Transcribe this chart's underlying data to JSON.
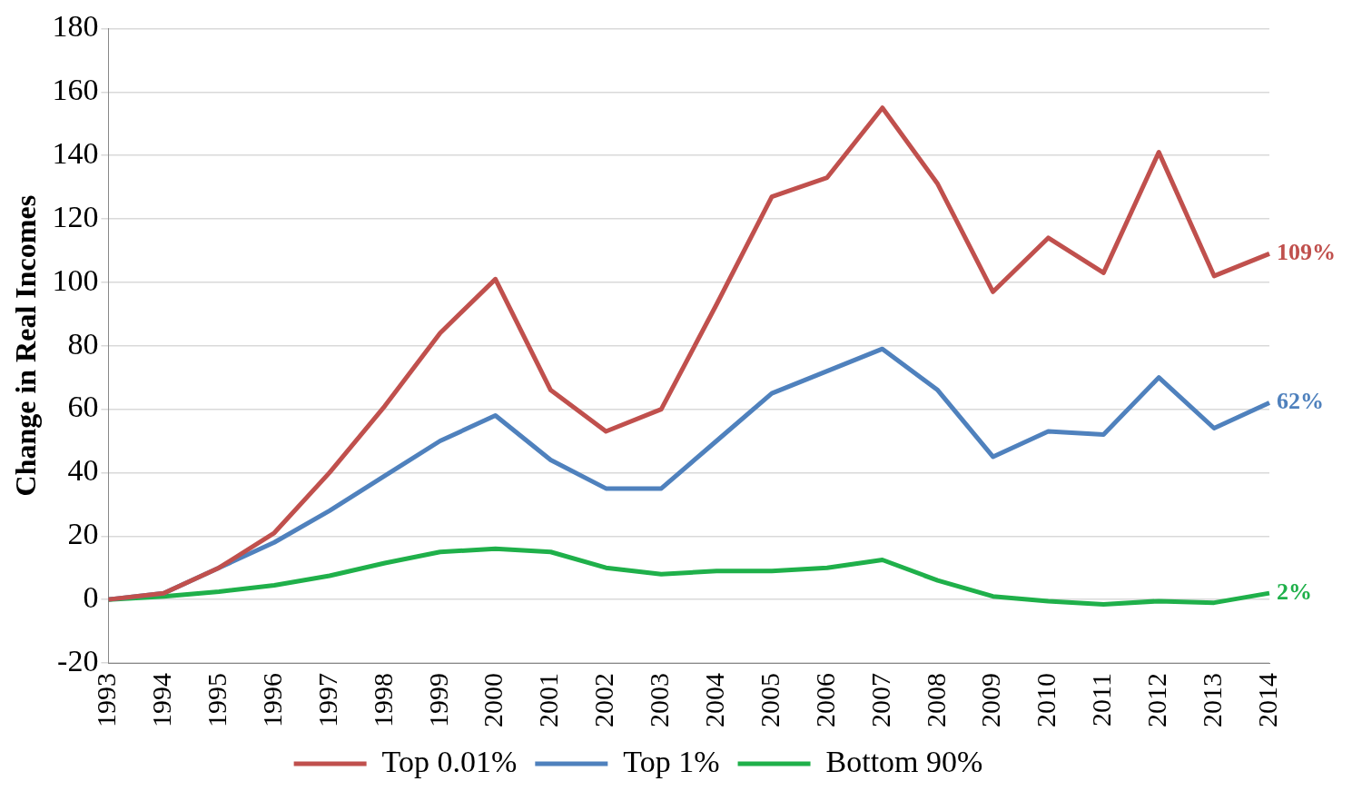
{
  "chart_data": {
    "type": "line",
    "ylabel": "Change in Real Incomes",
    "categories": [
      "1993",
      "1994",
      "1995",
      "1996",
      "1997",
      "1998",
      "1999",
      "2000",
      "2001",
      "2002",
      "2003",
      "2004",
      "2005",
      "2006",
      "2007",
      "2008",
      "2009",
      "2010",
      "2011",
      "2012",
      "2013",
      "2014"
    ],
    "series": [
      {
        "name": "Top 0.01%",
        "color": "#c0504d",
        "values": [
          0,
          2,
          10,
          21,
          40,
          61,
          84,
          101,
          66,
          53,
          60,
          93,
          127,
          133,
          155,
          131,
          97,
          114,
          103,
          141,
          102,
          109
        ],
        "value_labels": [
          null,
          null,
          null,
          null,
          null,
          null,
          null,
          null,
          null,
          null,
          null,
          null,
          null,
          null,
          null,
          null,
          null,
          null,
          null,
          null,
          null,
          "109%"
        ]
      },
      {
        "name": "Top 1%",
        "color": "#4f81bd",
        "values": [
          0,
          2,
          10,
          18,
          28,
          39,
          50,
          58,
          44,
          35,
          35,
          50,
          65,
          72,
          79,
          66,
          45,
          53,
          52,
          70,
          54,
          62
        ],
        "value_labels": [
          null,
          null,
          null,
          null,
          null,
          null,
          null,
          null,
          null,
          null,
          null,
          null,
          null,
          null,
          null,
          null,
          null,
          null,
          null,
          null,
          null,
          "62%"
        ]
      },
      {
        "name": "Bottom 90%",
        "color": "#1fb04a",
        "values": [
          0,
          1,
          2.5,
          4.5,
          7.5,
          11.5,
          15,
          16,
          15,
          10,
          8,
          9,
          9,
          10,
          12.5,
          6,
          1,
          -0.5,
          -1.5,
          -0.5,
          -1,
          2
        ],
        "value_labels": [
          null,
          null,
          null,
          null,
          null,
          null,
          null,
          null,
          null,
          null,
          null,
          null,
          null,
          null,
          null,
          null,
          null,
          null,
          null,
          null,
          null,
          "2%"
        ]
      }
    ],
    "ylim": [
      -20,
      180
    ],
    "yticks": [
      -20,
      0,
      20,
      40,
      60,
      80,
      100,
      120,
      140,
      160,
      180
    ],
    "grid": "y",
    "legend": "bottom",
    "marker": "none",
    "line_style": "solid"
  }
}
